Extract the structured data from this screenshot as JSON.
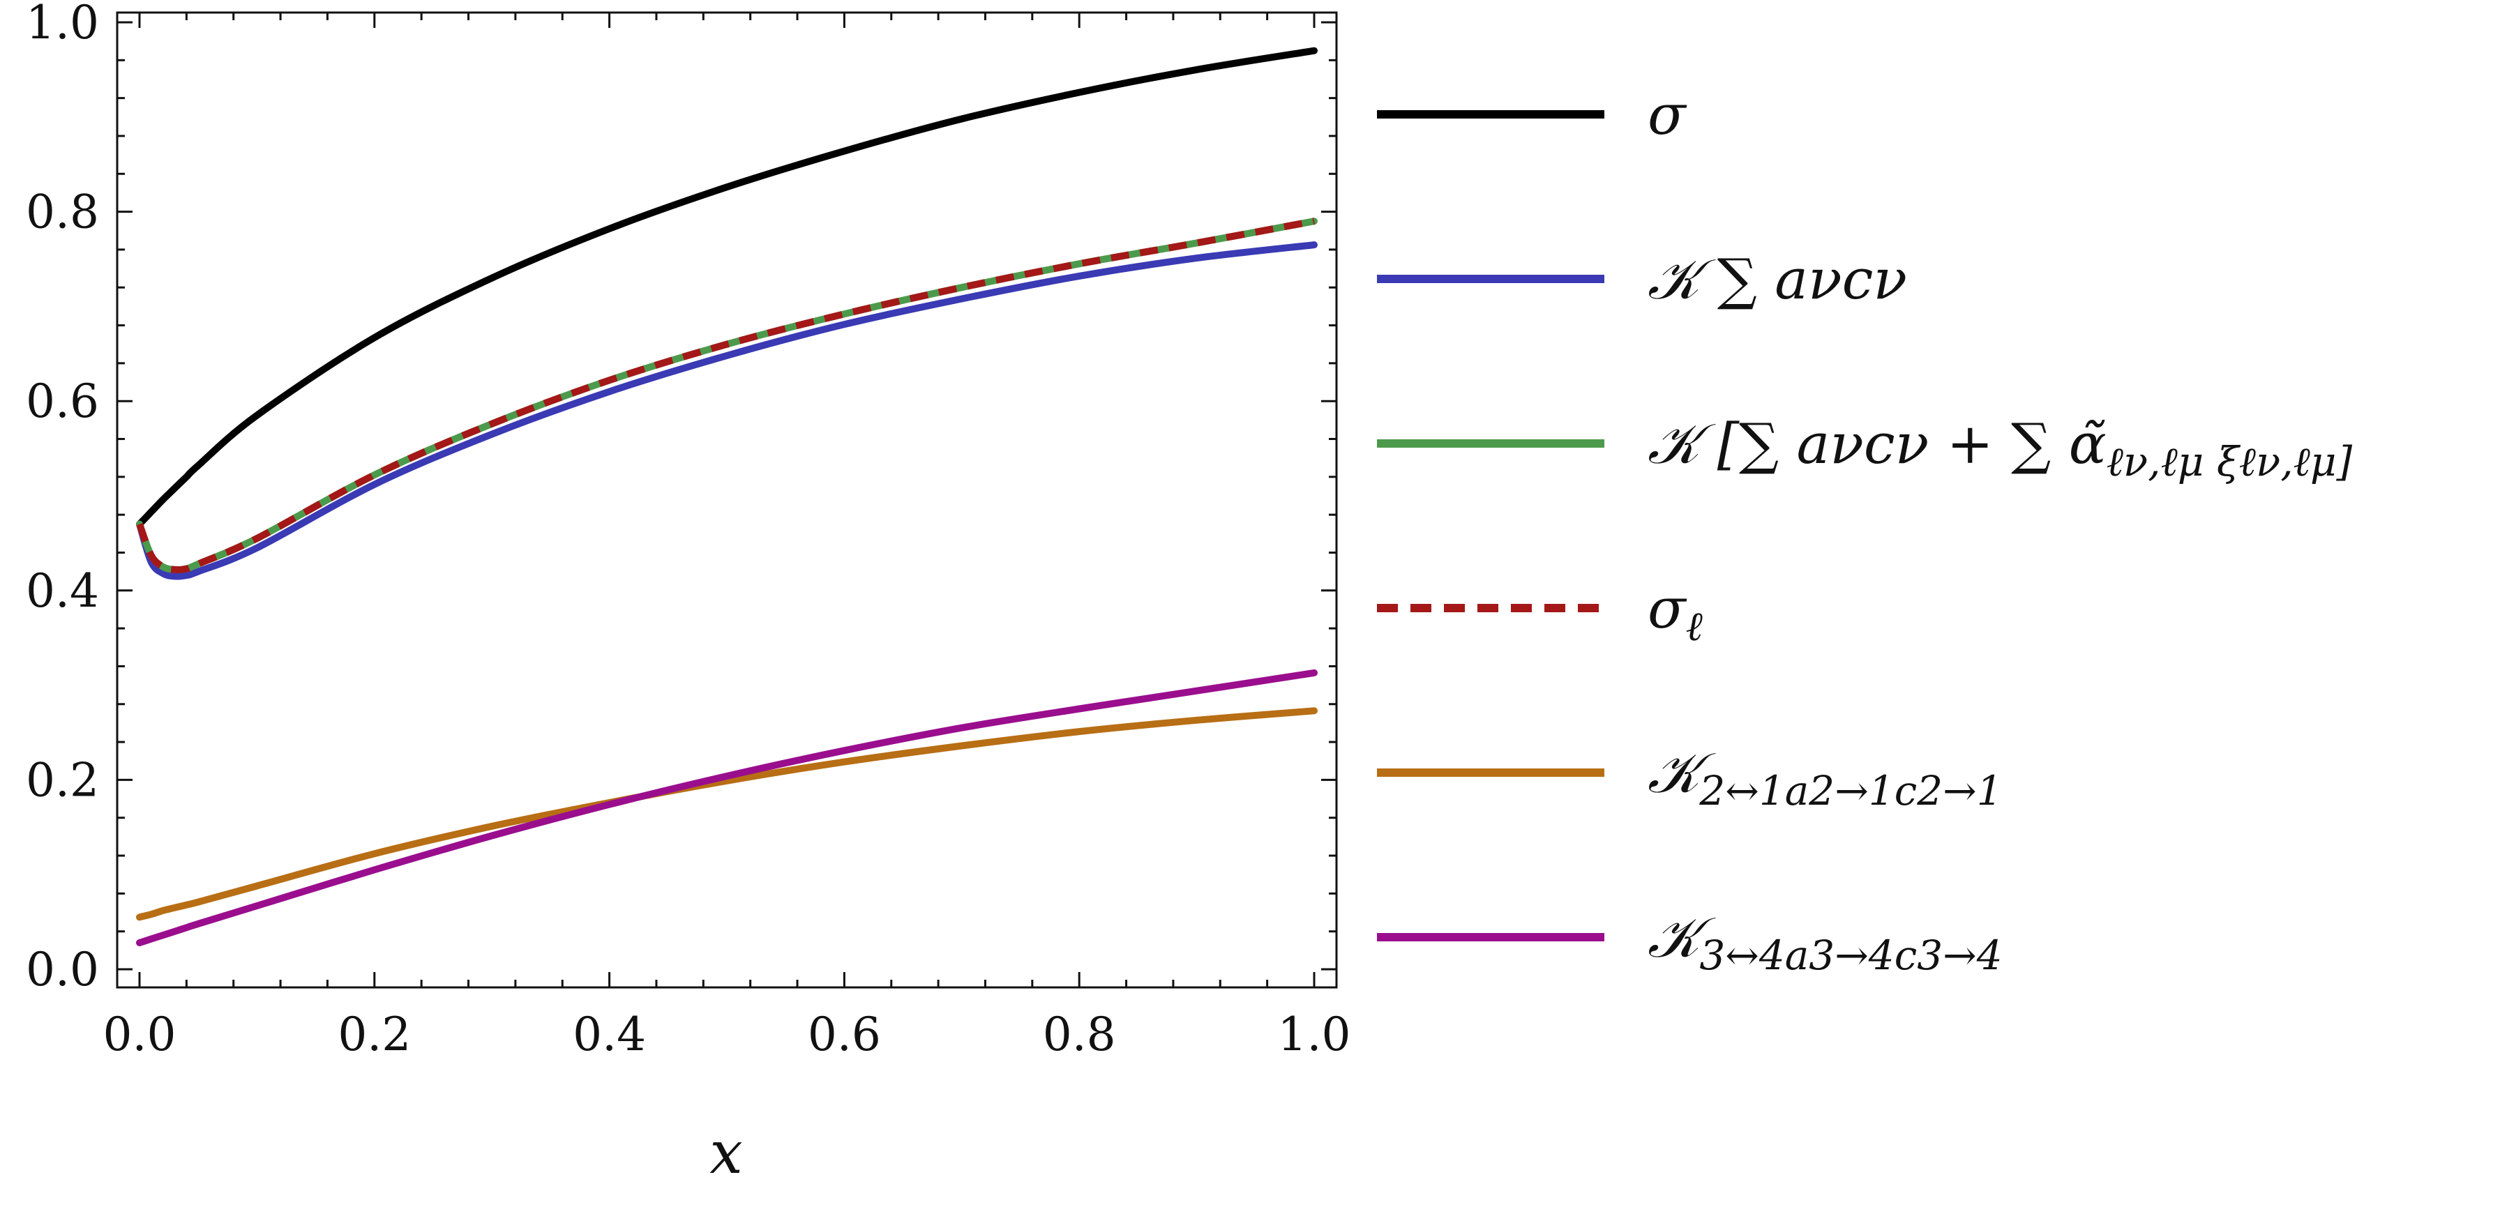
{
  "chart_data": {
    "type": "line",
    "xlabel": "x",
    "ylabel": "",
    "xlim": [
      0.0,
      1.0
    ],
    "ylim": [
      0.0,
      1.0
    ],
    "x_ticks": [
      "0.0",
      "0.2",
      "0.4",
      "0.6",
      "0.8",
      "1.0"
    ],
    "y_ticks": [
      "0.0",
      "0.2",
      "0.4",
      "0.6",
      "0.8",
      "1.0"
    ],
    "grid": false,
    "legend_position": "right",
    "x": [
      0.0,
      0.01,
      0.02,
      0.03,
      0.04,
      0.05,
      0.1,
      0.2,
      0.3,
      0.4,
      0.5,
      0.6,
      0.7,
      0.8,
      0.9,
      1.0
    ],
    "series": [
      {
        "name": "σ",
        "legend_main": "σ",
        "legend_sub": "",
        "color": "#000000",
        "dash": false,
        "values": [
          0.47,
          0.483,
          0.496,
          0.508,
          0.52,
          0.532,
          0.585,
          0.667,
          0.73,
          0.782,
          0.826,
          0.864,
          0.898,
          0.926,
          0.95,
          0.97
        ]
      },
      {
        "name": "𝒦 ∑ aνcν",
        "legend_main": "𝒦 ∑ aνcν",
        "legend_sub": "",
        "color": "#3a3ab4",
        "dash": false,
        "values": [
          0.47,
          0.43,
          0.418,
          0.415,
          0.416,
          0.42,
          0.445,
          0.512,
          0.565,
          0.61,
          0.648,
          0.681,
          0.708,
          0.732,
          0.751,
          0.765
        ]
      },
      {
        "name": "𝒦 [∑ aνcν + ∑ α̃ℓν,ℓμ ξℓν,ℓμ]",
        "legend_main": "𝒦 [∑ aνcν + ∑ α̃",
        "legend_sub": "ℓν,ℓμ ξℓν,ℓμ]",
        "color": "#4c9a4c",
        "dash": false,
        "values": [
          0.47,
          0.437,
          0.425,
          0.422,
          0.423,
          0.428,
          0.455,
          0.522,
          0.576,
          0.622,
          0.66,
          0.692,
          0.72,
          0.745,
          0.767,
          0.79
        ]
      },
      {
        "name": "σℓ",
        "legend_main": "σ",
        "legend_sub": "ℓ",
        "color": "#a41818",
        "dash": true,
        "values": [
          0.47,
          0.437,
          0.425,
          0.422,
          0.423,
          0.428,
          0.455,
          0.522,
          0.576,
          0.622,
          0.66,
          0.692,
          0.72,
          0.745,
          0.767,
          0.79
        ]
      },
      {
        "name": "𝒦2↔1a2→1c2→1",
        "legend_main": "𝒦",
        "legend_sub": "2↔1a2→1c2→1",
        "color": "#b86e14",
        "dash": false,
        "values": [
          0.055,
          0.058,
          0.062,
          0.065,
          0.068,
          0.071,
          0.088,
          0.122,
          0.151,
          0.176,
          0.199,
          0.219,
          0.236,
          0.251,
          0.263,
          0.273
        ]
      },
      {
        "name": "𝒦3↔4a3→4c3→4",
        "legend_main": "𝒦",
        "legend_sub": "3↔4a3→4c3→4",
        "color": "#9a0e8e",
        "dash": false,
        "values": [
          0.028,
          0.032,
          0.036,
          0.04,
          0.044,
          0.048,
          0.067,
          0.105,
          0.141,
          0.174,
          0.204,
          0.231,
          0.255,
          0.275,
          0.294,
          0.313
        ]
      }
    ]
  }
}
